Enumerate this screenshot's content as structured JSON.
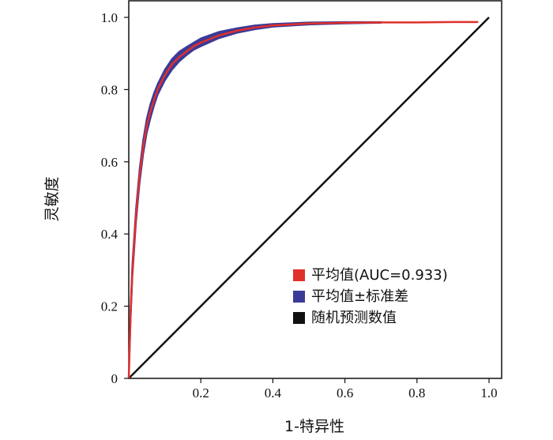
{
  "chart_data": {
    "type": "line",
    "xlabel": "1-特异性",
    "ylabel": "灵敏度",
    "xlim": [
      0,
      1.0
    ],
    "ylim": [
      0,
      1.0
    ],
    "x_ticks": [
      "0.2",
      "0.4",
      "0.6",
      "0.8",
      "1.0"
    ],
    "y_ticks": [
      "0",
      "0.2",
      "0.4",
      "0.6",
      "0.8",
      "1.0"
    ],
    "legend_position": "bottom-right",
    "series": [
      {
        "name": "平均值(AUC=0.933)",
        "color": "#e0302c",
        "x": [
          0,
          0.005,
          0.01,
          0.02,
          0.03,
          0.04,
          0.05,
          0.06,
          0.07,
          0.08,
          0.09,
          0.1,
          0.12,
          0.14,
          0.16,
          0.18,
          0.2,
          0.25,
          0.3,
          0.35,
          0.4,
          0.5,
          0.6,
          0.7,
          0.8,
          0.9,
          0.97
        ],
        "y": [
          0,
          0.18,
          0.3,
          0.45,
          0.56,
          0.64,
          0.7,
          0.74,
          0.77,
          0.8,
          0.82,
          0.84,
          0.87,
          0.89,
          0.905,
          0.92,
          0.93,
          0.95,
          0.963,
          0.972,
          0.978,
          0.983,
          0.985,
          0.986,
          0.986,
          0.987,
          0.987
        ]
      },
      {
        "name": "平均值±标准差",
        "color": "#3b3b97",
        "x": [
          0,
          0.005,
          0.01,
          0.02,
          0.03,
          0.04,
          0.05,
          0.06,
          0.07,
          0.08,
          0.09,
          0.1,
          0.12,
          0.14,
          0.16,
          0.18,
          0.2,
          0.25,
          0.3,
          0.35,
          0.4,
          0.5,
          0.6,
          0.7
        ],
        "y_lower": [
          0,
          0.16,
          0.28,
          0.43,
          0.54,
          0.62,
          0.68,
          0.72,
          0.755,
          0.785,
          0.805,
          0.825,
          0.855,
          0.878,
          0.895,
          0.91,
          0.92,
          0.942,
          0.957,
          0.967,
          0.974,
          0.98,
          0.983,
          0.985
        ],
        "y_upper": [
          0,
          0.2,
          0.32,
          0.47,
          0.58,
          0.66,
          0.72,
          0.76,
          0.79,
          0.815,
          0.835,
          0.855,
          0.885,
          0.905,
          0.918,
          0.93,
          0.942,
          0.96,
          0.97,
          0.978,
          0.982,
          0.986,
          0.987,
          0.987
        ]
      },
      {
        "name": "随机预测数值",
        "color": "#111111",
        "x": [
          0,
          1.0
        ],
        "y": [
          0,
          1.0
        ]
      }
    ]
  }
}
